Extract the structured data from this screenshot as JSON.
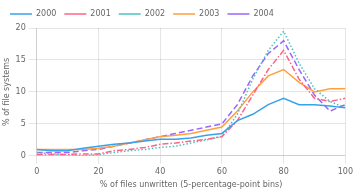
{
  "chart_data": {
    "type": "line",
    "xlabel": "% of files unwritten (5-percentage-point bins)",
    "ylabel": "% of file systems",
    "x": [
      0,
      5,
      10,
      15,
      20,
      25,
      30,
      35,
      40,
      45,
      50,
      55,
      60,
      65,
      70,
      75,
      80,
      85,
      90,
      95,
      100
    ],
    "series": [
      {
        "name": "2000",
        "line_style": "solid",
        "values": [
          1.0,
          0.8,
          0.8,
          1.2,
          1.5,
          1.8,
          2.0,
          2.3,
          2.6,
          2.6,
          2.8,
          3.2,
          3.5,
          5.5,
          6.5,
          8.0,
          9.0,
          8.0,
          8.0,
          7.8,
          7.5
        ]
      },
      {
        "name": "2001",
        "line_style": "dashdot",
        "values": [
          0.2,
          0.2,
          0.2,
          0.3,
          0.3,
          0.8,
          1.0,
          1.3,
          1.8,
          2.0,
          2.3,
          2.6,
          3.0,
          5.5,
          9.5,
          13.5,
          16.5,
          12.0,
          9.0,
          8.5,
          9.0
        ]
      },
      {
        "name": "2002",
        "line_style": "dotted",
        "values": [
          0.5,
          0.3,
          0.2,
          0.0,
          0.2,
          0.5,
          0.8,
          1.0,
          1.3,
          1.5,
          2.0,
          2.5,
          3.0,
          6.5,
          12.0,
          16.5,
          19.5,
          14.5,
          10.5,
          8.5,
          7.5
        ]
      },
      {
        "name": "2003",
        "line_style": "solid",
        "values": [
          1.0,
          1.0,
          1.0,
          1.0,
          1.2,
          1.5,
          2.0,
          2.5,
          3.0,
          3.2,
          3.5,
          4.0,
          4.5,
          7.0,
          10.0,
          12.5,
          13.5,
          11.5,
          10.0,
          10.5,
          10.5
        ]
      },
      {
        "name": "2004",
        "line_style": "dashed",
        "values": [
          0.5,
          0.5,
          0.5,
          0.8,
          1.0,
          1.5,
          2.0,
          2.5,
          3.0,
          3.5,
          4.0,
          4.5,
          5.0,
          8.0,
          12.5,
          16.0,
          18.0,
          13.5,
          9.5,
          7.0,
          8.0
        ]
      }
    ],
    "xlim": [
      0,
      100
    ],
    "ylim": [
      0,
      20
    ],
    "xticks": [
      0,
      20,
      40,
      60,
      80,
      100
    ],
    "yticks": [
      0,
      5,
      10,
      15,
      20
    ],
    "grid": true,
    "legend": "upper left"
  }
}
